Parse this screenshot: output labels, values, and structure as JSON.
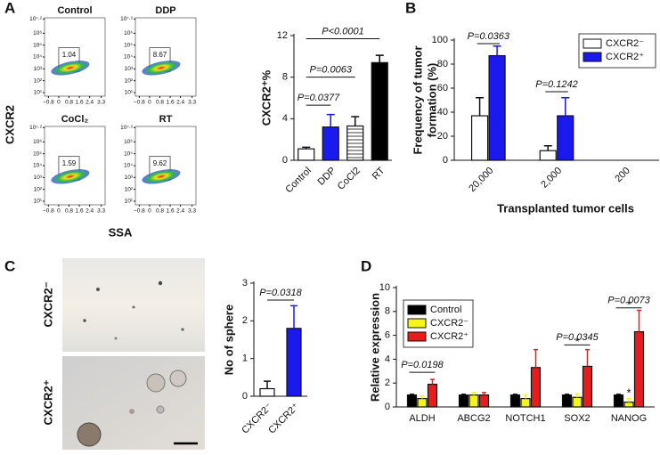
{
  "chart_data": [
    {
      "type": "flow",
      "panel": "A",
      "ylabel": "CXCR2",
      "xlabel": "SSA",
      "titles": [
        "Control",
        "DDP",
        "CoCl₂",
        "RT"
      ],
      "gate_values": [
        1.04,
        8.67,
        1.59,
        9.62
      ],
      "log_y": true,
      "xlim": [
        -1.1,
        3.6
      ],
      "ylim": [
        5,
        20000000
      ],
      "xticks": [
        {
          "value": -0.8,
          "label": "−0.8"
        },
        0,
        0.8,
        1.6,
        2.4,
        3.3
      ],
      "yticks": [
        {
          "value": 10,
          "label": "10¹"
        },
        {
          "value": 100,
          "label": "10²"
        },
        {
          "value": 1000,
          "label": "10³"
        },
        {
          "value": 10000,
          "label": "10⁴"
        },
        {
          "value": 100000,
          "label": "10⁵"
        },
        {
          "value": 1000000,
          "label": "10⁶"
        },
        {
          "value": 15848932,
          "label": "10⁷·²"
        }
      ]
    },
    {
      "type": "bar",
      "ylabel": "CXCR2⁺%",
      "categories": [
        "Control",
        "DDP",
        "CoCl2",
        "RT"
      ],
      "values": [
        1.1,
        3.2,
        3.3,
        9.4
      ],
      "errors": [
        0.15,
        1.2,
        0.9,
        0.7
      ],
      "colors": [
        "#ffffff",
        "#1a1aee",
        "#ffffff",
        "#000000"
      ],
      "hatched": [
        false,
        false,
        true,
        false
      ],
      "ylim": [
        0,
        12
      ],
      "yticks": [
        0,
        4,
        8,
        12
      ],
      "annotations": [
        "P=0.0377",
        "P=0.0063",
        "P<0.0001"
      ]
    },
    {
      "type": "grouped_bar",
      "panel": "B",
      "ylabel": [
        "Frequency of tumor",
        "formation (%)"
      ],
      "xlabel": "Transplanted tumor cells",
      "categories": [
        "20,000",
        "2,000",
        "200"
      ],
      "series": [
        {
          "name": "CXCR2⁻",
          "color": "#ffffff",
          "values": [
            37,
            8,
            0
          ],
          "errors": [
            15,
            4,
            0
          ]
        },
        {
          "name": "CXCR2⁺",
          "color": "#1a1aee",
          "values": [
            87,
            37,
            0
          ],
          "errors": [
            8,
            15,
            0
          ]
        }
      ],
      "ylim": [
        0,
        100
      ],
      "yticks": [
        0,
        20,
        40,
        60,
        80,
        100
      ],
      "legend": "upper right",
      "annotations": [
        "P=0.0363",
        "P=0.1242"
      ]
    },
    {
      "type": "bar",
      "panel": "C",
      "image_labels": [
        "CXCR2⁻",
        "CXCR2⁺"
      ],
      "ylabel": "No of sphere",
      "categories": [
        "CXCR2⁻",
        "CXCR2⁺"
      ],
      "values": [
        0.2,
        1.8
      ],
      "errors": [
        0.2,
        0.6
      ],
      "colors": [
        "#ffffff",
        "#1a1aee"
      ],
      "hatched": [
        false,
        false
      ],
      "ylim": [
        0,
        3
      ],
      "yticks": [
        0,
        1,
        2,
        3
      ],
      "annotations": [
        "P=0.0318"
      ]
    },
    {
      "type": "grouped_bar",
      "panel": "D",
      "ylabel": "Relative expression",
      "categories": [
        "ALDH",
        "ABCG2",
        "NOTCH1",
        "SOX2",
        "NANOG"
      ],
      "series": [
        {
          "name": "Control",
          "color": "#000000",
          "values": [
            1,
            1,
            1,
            1,
            1
          ],
          "errors": [
            0.05,
            0.05,
            0.05,
            0.05,
            0.05
          ]
        },
        {
          "name": "CXCR2⁻",
          "color": "#f5f51a",
          "values": [
            0.7,
            1.0,
            0.7,
            0.8,
            0.4
          ],
          "errors": [
            0.2,
            0.2,
            0.3,
            0.3,
            0.3
          ]
        },
        {
          "name": "CXCR2⁺",
          "color": "#e81c1c",
          "values": [
            1.9,
            1.0,
            3.3,
            3.4,
            6.3
          ],
          "errors": [
            0.4,
            0.2,
            1.5,
            1.4,
            1.8
          ]
        }
      ],
      "ylim": [
        0,
        10
      ],
      "yticks": [
        0,
        2,
        4,
        6,
        8,
        10
      ],
      "legend": "upper left",
      "annotations": [
        "P=0.0198",
        "P=0.0345",
        "P=0.0073"
      ],
      "asterisks": [
        "*",
        "*",
        "*"
      ]
    }
  ]
}
